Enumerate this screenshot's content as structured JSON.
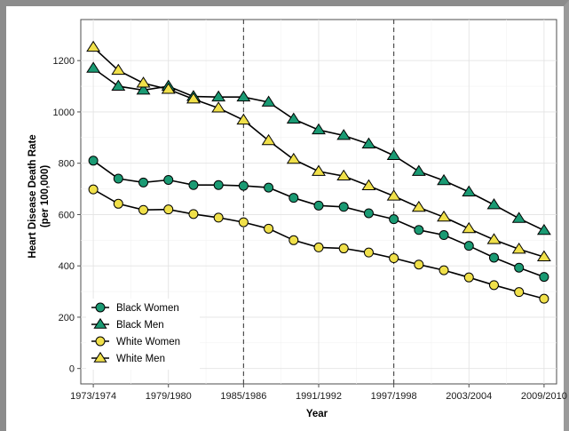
{
  "chart_data": {
    "type": "line",
    "title": "",
    "xlabel": "Year",
    "ylabel": [
      "Heart Disease Death Rate",
      "(per 100,000)"
    ],
    "ylim": [
      -60,
      1360
    ],
    "yticks": [
      0,
      200,
      400,
      600,
      800,
      1000,
      1200
    ],
    "x_tick_labels": [
      "1973/1974",
      "1979/1980",
      "1985/1986",
      "1991/1992",
      "1997/1998",
      "2003/2004",
      "2009/2010"
    ],
    "x_tick_positions": [
      1974,
      1980,
      1986,
      1992,
      1998,
      2004,
      2010
    ],
    "xlim": [
      1973,
      2011
    ],
    "vlines": [
      1986,
      1998
    ],
    "grid": true,
    "legend_position": "bottom-left",
    "series": [
      {
        "name": "Black Women",
        "marker": "circle",
        "color": "#1a9a73",
        "x": [
          1974,
          1975.5,
          1977,
          1978.5,
          1980,
          1981.5,
          1983,
          1984.5,
          1986,
          1987.5,
          1989,
          1990.5,
          1992,
          1993.5,
          1995,
          1996.5,
          1998,
          1999.5,
          2001,
          2002.5,
          2004,
          2005.5,
          2007,
          2008.5,
          2010
        ],
        "y": [
          810,
          null,
          740,
          null,
          725,
          null,
          735,
          null,
          715,
          null,
          715,
          null,
          712,
          null,
          705,
          null,
          665,
          null,
          635,
          null,
          630,
          null,
          605,
          null,
          582
        ]
      }
    ]
  }
}
